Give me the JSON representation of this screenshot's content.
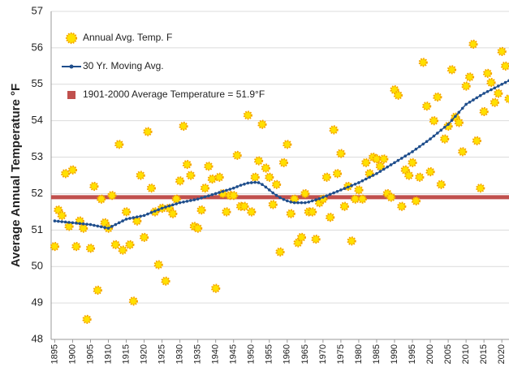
{
  "chart_data": {
    "type": "scatter",
    "y_label": "Average Annual Temperature °F",
    "x": [
      1895,
      1896,
      1897,
      1898,
      1899,
      1900,
      1901,
      1902,
      1903,
      1904,
      1905,
      1906,
      1907,
      1908,
      1909,
      1910,
      1911,
      1912,
      1913,
      1914,
      1915,
      1916,
      1917,
      1918,
      1919,
      1920,
      1921,
      1922,
      1923,
      1924,
      1925,
      1926,
      1927,
      1928,
      1929,
      1930,
      1931,
      1932,
      1933,
      1934,
      1935,
      1936,
      1937,
      1938,
      1939,
      1940,
      1941,
      1942,
      1943,
      1944,
      1945,
      1946,
      1947,
      1948,
      1949,
      1950,
      1951,
      1952,
      1953,
      1954,
      1955,
      1956,
      1957,
      1958,
      1959,
      1960,
      1961,
      1962,
      1963,
      1964,
      1965,
      1966,
      1967,
      1968,
      1969,
      1970,
      1971,
      1972,
      1973,
      1974,
      1975,
      1976,
      1977,
      1978,
      1979,
      1980,
      1981,
      1982,
      1983,
      1984,
      1985,
      1986,
      1987,
      1988,
      1989,
      1990,
      1991,
      1992,
      1993,
      1994,
      1995,
      1996,
      1997,
      1998,
      1999,
      2000,
      2001,
      2002,
      2003,
      2004,
      2005,
      2006,
      2007,
      2008,
      2009,
      2010,
      2011,
      2012,
      2013,
      2014,
      2015,
      2016,
      2017,
      2018,
      2019,
      2020,
      2021,
      2022
    ],
    "series": [
      {
        "name": "Annual Avg. Temp. F",
        "color": "#ffe000",
        "style": "markers",
        "values": [
          50.55,
          51.55,
          51.4,
          52.55,
          51.1,
          52.65,
          50.55,
          51.25,
          51.05,
          48.55,
          50.5,
          52.2,
          49.35,
          51.85,
          51.2,
          51.05,
          51.95,
          50.6,
          53.35,
          50.45,
          51.5,
          50.6,
          49.05,
          51.25,
          52.5,
          50.8,
          53.7,
          52.15,
          51.5,
          50.05,
          51.6,
          49.6,
          51.6,
          51.45,
          51.85,
          52.35,
          53.85,
          52.8,
          52.5,
          51.1,
          51.05,
          51.55,
          52.15,
          52.75,
          52.4,
          49.4,
          52.45,
          52.0,
          51.5,
          51.95,
          51.95,
          53.05,
          51.65,
          51.65,
          54.15,
          51.5,
          52.45,
          52.9,
          53.9,
          52.7,
          52.45,
          51.7,
          52.25,
          50.4,
          52.85,
          53.35,
          51.45,
          51.85,
          50.65,
          50.8,
          52.0,
          51.5,
          51.5,
          50.75,
          51.75,
          51.85,
          52.45,
          51.35,
          53.75,
          52.55,
          53.1,
          51.65,
          52.2,
          50.7,
          51.85,
          52.1,
          51.85,
          52.85,
          52.55,
          53.0,
          52.95,
          52.75,
          52.95,
          52.0,
          51.9,
          54.85,
          54.7,
          51.65,
          52.65,
          52.5,
          52.85,
          51.8,
          52.45,
          55.6,
          54.4,
          52.6,
          54.0,
          54.65,
          52.25,
          53.5,
          53.85,
          55.4,
          54.1,
          53.95,
          53.15,
          54.95,
          55.2,
          56.1,
          53.45,
          52.15,
          54.25,
          55.3,
          55.05,
          54.5,
          54.75,
          55.9,
          55.5,
          54.6
        ]
      },
      {
        "name": "30 Yr. Moving Avg.",
        "color": "#1f4e8c",
        "style": "line",
        "values": [
          51.25,
          51.24,
          51.23,
          51.22,
          51.21,
          51.2,
          51.19,
          51.18,
          51.17,
          51.16,
          51.15,
          51.13,
          51.11,
          51.09,
          51.07,
          51.05,
          51.1,
          51.15,
          51.2,
          51.25,
          51.3,
          51.32,
          51.34,
          51.36,
          51.38,
          51.4,
          51.44,
          51.48,
          51.52,
          51.56,
          51.6,
          51.63,
          51.66,
          51.69,
          51.72,
          51.75,
          51.77,
          51.79,
          51.81,
          51.83,
          51.85,
          51.88,
          51.91,
          51.94,
          51.97,
          52.0,
          52.03,
          52.06,
          52.09,
          52.12,
          52.15,
          52.19,
          52.23,
          52.26,
          52.29,
          52.3,
          52.31,
          52.3,
          52.25,
          52.18,
          52.1,
          52.02,
          51.95,
          51.89,
          51.84,
          51.8,
          51.77,
          51.75,
          51.75,
          51.75,
          51.75,
          51.77,
          51.8,
          51.83,
          51.86,
          51.9,
          51.94,
          51.98,
          52.02,
          52.06,
          52.1,
          52.14,
          52.18,
          52.22,
          52.26,
          52.3,
          52.35,
          52.4,
          52.45,
          52.5,
          52.55,
          52.61,
          52.67,
          52.73,
          52.79,
          52.85,
          52.91,
          52.97,
          53.03,
          53.09,
          53.15,
          53.22,
          53.29,
          53.36,
          53.43,
          53.5,
          53.58,
          53.66,
          53.74,
          53.82,
          53.9,
          54.01,
          54.12,
          54.23,
          54.34,
          54.45,
          54.51,
          54.57,
          54.63,
          54.69,
          54.75,
          54.8,
          54.85,
          54.9,
          54.95,
          55.0,
          55.05,
          55.1
        ]
      }
    ],
    "reference": {
      "name": "1901-2000 Average Temperature = 51.9°F",
      "value": 51.9,
      "color": "#c0504d"
    },
    "xlim": [
      1894,
      2022
    ],
    "xticks": [
      1895,
      1900,
      1905,
      1910,
      1915,
      1920,
      1925,
      1930,
      1935,
      1940,
      1945,
      1950,
      1955,
      1960,
      1965,
      1970,
      1975,
      1980,
      1985,
      1990,
      1995,
      2000,
      2005,
      2010,
      2015,
      2020
    ],
    "ylim": [
      48,
      57
    ],
    "yticks": [
      48,
      49,
      50,
      51,
      52,
      53,
      54,
      55,
      56,
      57
    ],
    "grid": true
  }
}
